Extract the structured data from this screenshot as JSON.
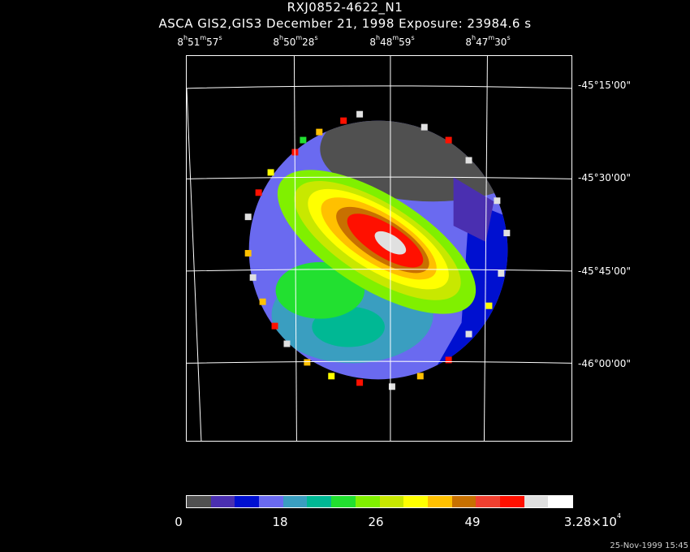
{
  "header": {
    "title": "RXJ0852-4622_N1",
    "subtitle": "ASCA GIS2,GIS3 December 21, 1998 Exposure: 23984.6 s"
  },
  "ra_ticks": [
    {
      "h": "8",
      "m": "51",
      "s": "57"
    },
    {
      "h": "8",
      "m": "50",
      "s": "28"
    },
    {
      "h": "8",
      "m": "48",
      "s": "59"
    },
    {
      "h": "8",
      "m": "47",
      "s": "30"
    }
  ],
  "dec_ticks": [
    "-45°15'00\"",
    "-45°30'00\"",
    "-45°45'00\"",
    "-46°00'00\""
  ],
  "colorbar": {
    "colors": [
      "#505050",
      "#4a2fb0",
      "#0010d0",
      "#6a6af0",
      "#3a9ec0",
      "#00b894",
      "#22e030",
      "#80f000",
      "#c8e800",
      "#ffff00",
      "#ffc000",
      "#c87000",
      "#f04030",
      "#ff1000",
      "#e0e0e0",
      "#ffffff"
    ],
    "labels": [
      "0",
      "18",
      "26",
      "49"
    ],
    "max_label_base": "3.28×10",
    "max_label_exp": "4"
  },
  "timestamp": "25-Nov-1999 15:45"
}
